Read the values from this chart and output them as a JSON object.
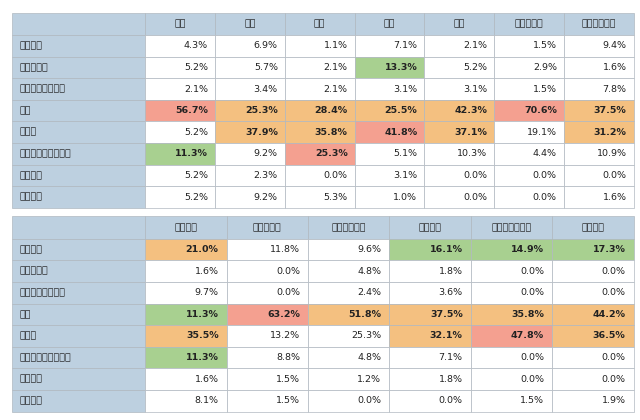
{
  "table1_cols": [
    "韓国",
    "中国",
    "台湾",
    "香港",
    "タイ",
    "マレーシア",
    "インドネシア"
  ],
  "table2_cols": [
    "ベトナム",
    "フィリピン",
    "シンガポール",
    "アメリカ",
    "オーストラリア",
    "イギリス"
  ],
  "rows": [
    "タクシー",
    "レンタカー",
    "レンタルサイクル",
    "電車",
    "新幹線",
    "貸し切り・観光バス",
    "高速バス",
    "路線バス"
  ],
  "table1_data": [
    [
      4.3,
      6.9,
      1.1,
      7.1,
      2.1,
      1.5,
      9.4
    ],
    [
      5.2,
      5.7,
      2.1,
      13.3,
      5.2,
      2.9,
      1.6
    ],
    [
      2.1,
      3.4,
      2.1,
      3.1,
      3.1,
      1.5,
      7.8
    ],
    [
      56.7,
      25.3,
      28.4,
      25.5,
      42.3,
      70.6,
      37.5
    ],
    [
      5.2,
      37.9,
      35.8,
      41.8,
      37.1,
      19.1,
      31.2
    ],
    [
      11.3,
      9.2,
      25.3,
      5.1,
      10.3,
      4.4,
      10.9
    ],
    [
      5.2,
      2.3,
      0.0,
      3.1,
      0.0,
      0.0,
      0.0
    ],
    [
      5.2,
      9.2,
      5.3,
      1.0,
      0.0,
      0.0,
      1.6
    ]
  ],
  "table2_data": [
    [
      21.0,
      11.8,
      9.6,
      16.1,
      14.9,
      17.3
    ],
    [
      1.6,
      0.0,
      4.8,
      1.8,
      0.0,
      0.0
    ],
    [
      9.7,
      0.0,
      2.4,
      3.6,
      0.0,
      0.0
    ],
    [
      11.3,
      63.2,
      51.8,
      37.5,
      35.8,
      44.2
    ],
    [
      35.5,
      13.2,
      25.3,
      32.1,
      47.8,
      36.5
    ],
    [
      11.3,
      8.8,
      4.8,
      7.1,
      0.0,
      0.0
    ],
    [
      1.6,
      1.5,
      1.2,
      1.8,
      0.0,
      0.0
    ],
    [
      8.1,
      1.5,
      0.0,
      0.0,
      1.5,
      1.9
    ]
  ],
  "t1_cell_colors": [
    [
      "white",
      "white",
      "white",
      "white",
      "white",
      "white",
      "white"
    ],
    [
      "white",
      "white",
      "white",
      "green",
      "white",
      "white",
      "white"
    ],
    [
      "white",
      "white",
      "white",
      "white",
      "white",
      "white",
      "white"
    ],
    [
      "red",
      "orange",
      "orange",
      "orange",
      "orange",
      "red",
      "orange"
    ],
    [
      "white",
      "orange",
      "orange",
      "red",
      "orange",
      "white",
      "orange"
    ],
    [
      "green",
      "white",
      "red",
      "white",
      "white",
      "white",
      "white"
    ],
    [
      "white",
      "white",
      "white",
      "white",
      "white",
      "white",
      "white"
    ],
    [
      "white",
      "white",
      "white",
      "white",
      "white",
      "white",
      "white"
    ]
  ],
  "t2_cell_colors": [
    [
      "orange",
      "white",
      "white",
      "green",
      "green",
      "green"
    ],
    [
      "white",
      "white",
      "white",
      "white",
      "white",
      "white"
    ],
    [
      "white",
      "white",
      "white",
      "white",
      "white",
      "white"
    ],
    [
      "green",
      "red",
      "orange",
      "orange",
      "orange",
      "orange"
    ],
    [
      "orange",
      "white",
      "white",
      "orange",
      "red",
      "orange"
    ],
    [
      "green",
      "white",
      "white",
      "white",
      "white",
      "white"
    ],
    [
      "white",
      "white",
      "white",
      "white",
      "white",
      "white"
    ],
    [
      "white",
      "white",
      "white",
      "white",
      "white",
      "white"
    ]
  ],
  "color_red": "#F4A090",
  "color_orange": "#F4C080",
  "color_green": "#A8D090",
  "color_header_bg": "#BDD0E0",
  "color_row_label_bg": "#BDD0E0",
  "color_white": "#FFFFFF",
  "color_border": "#B0B8C0",
  "color_text": "#222222"
}
